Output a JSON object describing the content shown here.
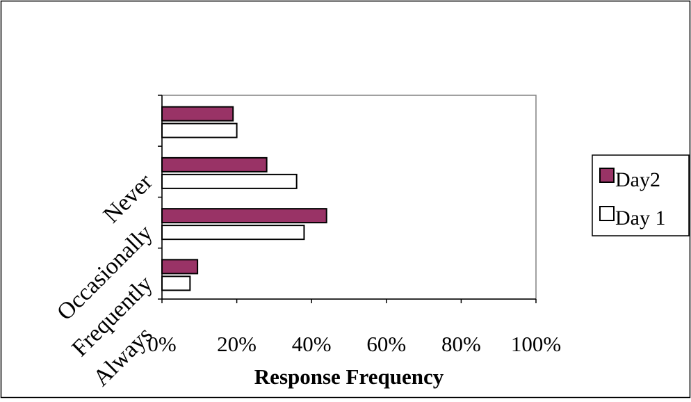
{
  "chart_data": {
    "type": "bar",
    "orientation": "horizontal",
    "title": "",
    "xlabel": "Response Frequency",
    "ylabel": "",
    "categories": [
      "Never",
      "Occasionally",
      "Frequently",
      "Always"
    ],
    "series": [
      {
        "name": "Day2",
        "color": "#993366",
        "values": [
          19,
          28,
          44,
          9.5
        ]
      },
      {
        "name": "Day 1",
        "color": "#ffffff",
        "values": [
          20,
          36,
          38,
          7.5
        ]
      }
    ],
    "xlim": [
      0,
      100
    ],
    "xticks": [
      "0%",
      "20%",
      "40%",
      "60%",
      "80%",
      "100%"
    ],
    "grid": false,
    "legend_position": "right"
  }
}
